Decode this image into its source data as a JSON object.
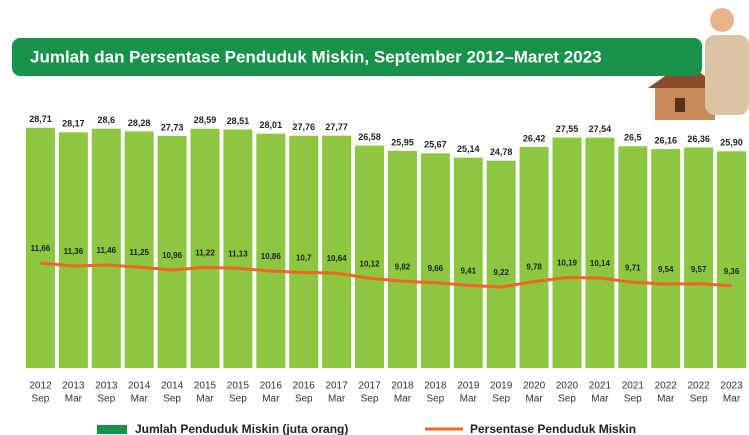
{
  "chart_data": {
    "type": "bar-line",
    "title": "Jumlah dan Persentase Penduduk Miskin, September 2012–Maret 2023",
    "categories": [
      [
        "2012",
        "Sep"
      ],
      [
        "2013",
        "Mar"
      ],
      [
        "2013",
        "Sep"
      ],
      [
        "2014",
        "Mar"
      ],
      [
        "2014",
        "Sep"
      ],
      [
        "2015",
        "Mar"
      ],
      [
        "2015",
        "Sep"
      ],
      [
        "2016",
        "Mar"
      ],
      [
        "2016",
        "Sep"
      ],
      [
        "2017",
        "Mar"
      ],
      [
        "2017",
        "Sep"
      ],
      [
        "2018",
        "Mar"
      ],
      [
        "2018",
        "Sep"
      ],
      [
        "2019",
        "Mar"
      ],
      [
        "2019",
        "Sep"
      ],
      [
        "2020",
        "Mar"
      ],
      [
        "2020",
        "Sep"
      ],
      [
        "2021",
        "Mar"
      ],
      [
        "2021",
        "Sep"
      ],
      [
        "2022",
        "Mar"
      ],
      [
        "2022",
        "Sep"
      ],
      [
        "2023",
        "Mar"
      ]
    ],
    "series": [
      {
        "name": "Jumlah Penduduk Miskin (juta orang)",
        "color": "#8dc63f",
        "values": [
          28.71,
          28.17,
          28.6,
          28.28,
          27.73,
          28.59,
          28.51,
          28.01,
          27.76,
          27.77,
          26.58,
          25.95,
          25.67,
          25.14,
          24.78,
          26.42,
          27.55,
          27.54,
          26.5,
          26.16,
          26.36,
          25.9
        ],
        "value_labels": [
          "28,71",
          "28,17",
          "28,6",
          "28,28",
          "27,73",
          "28,59",
          "28,51",
          "28,01",
          "27,76",
          "27,77",
          "26,58",
          "25,95",
          "25,67",
          "25,14",
          "24,78",
          "26,42",
          "27,55",
          "27,54",
          "26,5",
          "26,16",
          "26,36",
          "25,90"
        ]
      },
      {
        "name": "Persentase Penduduk Miskin",
        "color": "#f26522",
        "axis": "y2",
        "values": [
          11.66,
          11.36,
          11.46,
          11.25,
          10.96,
          11.22,
          11.13,
          10.86,
          10.7,
          10.64,
          10.12,
          9.82,
          9.66,
          9.41,
          9.22,
          9.78,
          10.19,
          10.14,
          9.71,
          9.54,
          9.57,
          9.36
        ],
        "value_labels": [
          "11,66",
          "11,36",
          "11,46",
          "11,25",
          "10,96",
          "11,22",
          "11,13",
          "10,86",
          "10,7",
          "10,64",
          "10,12",
          "9,82",
          "9,66",
          "9,41",
          "9,22",
          "9,78",
          "10,19",
          "10,14",
          "9,71",
          "9,54",
          "9,57",
          "9,36"
        ]
      }
    ],
    "ylim": [
      0,
      30
    ],
    "y2lim": [
      1,
      26.5
    ]
  }
}
